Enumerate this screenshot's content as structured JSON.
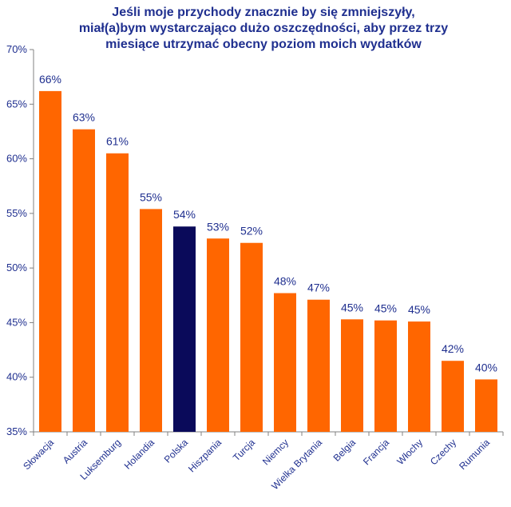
{
  "chart_data": {
    "type": "bar",
    "title_lines": [
      "Jeśli moje przychody znacznie by się zmniejszyły,",
      "miał(a)bym wystarczająco dużo oszczędności, aby przez trzy",
      "miesiące utrzymać obecny poziom moich wydatków"
    ],
    "categories": [
      "Słowacja",
      "Austria",
      "Luksemburg",
      "Holandia",
      "Polska",
      "Hiszpania",
      "Turcja",
      "Niemcy",
      "Wielka Brytania",
      "Belgia",
      "Francja",
      "Włochy",
      "Czechy",
      "Rumunia"
    ],
    "values": [
      66.2,
      62.7,
      60.5,
      55.4,
      53.8,
      52.7,
      52.3,
      47.7,
      47.1,
      45.3,
      45.2,
      45.1,
      41.5,
      39.8
    ],
    "labels": [
      "66%",
      "63%",
      "61%",
      "55%",
      "54%",
      "53%",
      "52%",
      "48%",
      "47%",
      "45%",
      "45%",
      "45%",
      "42%",
      "40%"
    ],
    "highlight": "Polska",
    "ylim": [
      35,
      70
    ],
    "yticks": [
      35,
      40,
      45,
      50,
      55,
      60,
      65,
      70
    ],
    "ytick_labels": [
      "35%",
      "40%",
      "45%",
      "50%",
      "55%",
      "60%",
      "65%",
      "70%"
    ],
    "xlabel": "",
    "ylabel": "",
    "grid": false,
    "colors": {
      "bar": "#ff6600",
      "highlight": "#0a0a5a",
      "text": "#1f2f8f",
      "axis": "#808080"
    }
  }
}
